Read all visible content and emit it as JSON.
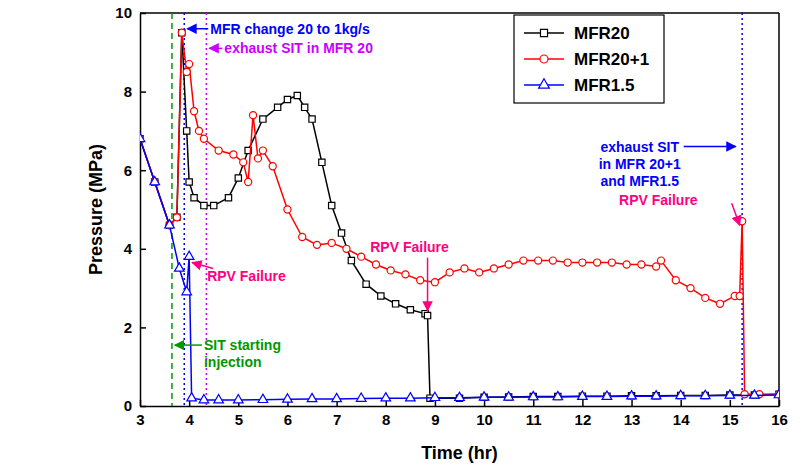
{
  "chart_data": {
    "type": "line",
    "x_label": "Time (hr)",
    "y_label": "Pressure (MPa)",
    "xlim": [
      3,
      16
    ],
    "xticks": [
      3,
      4,
      5,
      6,
      7,
      8,
      9,
      10,
      11,
      12,
      13,
      14,
      15,
      16
    ],
    "ylim": [
      0,
      10
    ],
    "yticks": [
      0,
      2,
      4,
      6,
      8,
      10
    ],
    "grid": false,
    "legend": "upper right",
    "series": [
      {
        "name": "MFR20",
        "color": "#000000",
        "marker": "square",
        "x": [
          3.0,
          3.3,
          3.6,
          3.75,
          3.85,
          3.95,
          4.0,
          4.1,
          4.3,
          4.5,
          4.8,
          5.0,
          5.2,
          5.5,
          5.8,
          6.0,
          6.2,
          6.35,
          6.5,
          6.7,
          6.9,
          7.1,
          7.3,
          7.6,
          7.9,
          8.2,
          8.5,
          8.8,
          8.85,
          8.9,
          9.5,
          10,
          10.5,
          11,
          11.5,
          12,
          12.5,
          13,
          13.5,
          14,
          14.5,
          15,
          15.5,
          16
        ],
        "values": [
          6.8,
          5.7,
          4.6,
          4.8,
          9.5,
          7.0,
          5.7,
          5.3,
          5.1,
          5.1,
          5.3,
          5.8,
          6.5,
          7.3,
          7.6,
          7.8,
          7.9,
          7.6,
          7.3,
          6.2,
          5.1,
          4.4,
          3.7,
          3.1,
          2.8,
          2.6,
          2.45,
          2.35,
          2.3,
          0.2,
          0.2,
          0.22,
          0.23,
          0.24,
          0.24,
          0.25,
          0.25,
          0.26,
          0.26,
          0.27,
          0.27,
          0.28,
          0.28,
          0.3
        ]
      },
      {
        "name": "MFR20+1",
        "color": "#ff0000",
        "marker": "circle",
        "x": [
          3.0,
          3.3,
          3.6,
          3.75,
          3.85,
          3.95,
          4.0,
          4.1,
          4.2,
          4.3,
          4.6,
          4.9,
          5.1,
          5.2,
          5.3,
          5.4,
          5.5,
          5.7,
          6.0,
          6.3,
          6.6,
          6.9,
          7.2,
          7.5,
          7.8,
          8.1,
          8.4,
          8.7,
          9.0,
          9.3,
          9.6,
          9.9,
          10.2,
          10.5,
          10.8,
          11.1,
          11.4,
          11.7,
          12.0,
          12.3,
          12.6,
          12.9,
          13.2,
          13.5,
          13.6,
          13.9,
          14.2,
          14.5,
          14.8,
          15.1,
          15.2,
          15.25,
          15.3,
          15.6,
          16
        ],
        "values": [
          6.8,
          5.7,
          4.6,
          4.8,
          9.5,
          8.5,
          8.7,
          7.5,
          7.0,
          6.8,
          6.5,
          6.4,
          6.2,
          5.7,
          7.4,
          6.3,
          6.5,
          6.1,
          5.0,
          4.3,
          4.1,
          4.15,
          4.0,
          3.8,
          3.6,
          3.45,
          3.35,
          3.2,
          3.15,
          3.4,
          3.5,
          3.4,
          3.5,
          3.6,
          3.7,
          3.7,
          3.7,
          3.65,
          3.65,
          3.65,
          3.65,
          3.6,
          3.6,
          3.55,
          3.7,
          3.2,
          3.0,
          2.75,
          2.6,
          2.8,
          2.8,
          4.7,
          0.3,
          0.3,
          0.3
        ]
      },
      {
        "name": "MFR1.5",
        "color": "#0000ff",
        "marker": "triangle",
        "x": [
          3.0,
          3.3,
          3.6,
          3.8,
          3.95,
          4.0,
          4.05,
          4.3,
          4.6,
          5,
          5.5,
          6,
          6.5,
          7,
          7.5,
          8,
          8.5,
          9,
          9.5,
          10,
          10.5,
          11,
          11.5,
          12,
          12.5,
          13,
          13.5,
          14,
          14.5,
          15,
          15.5,
          16
        ],
        "values": [
          6.8,
          5.7,
          4.6,
          3.5,
          2.9,
          3.8,
          0.2,
          0.15,
          0.15,
          0.15,
          0.16,
          0.17,
          0.18,
          0.18,
          0.19,
          0.2,
          0.2,
          0.21,
          0.21,
          0.22,
          0.22,
          0.23,
          0.23,
          0.24,
          0.24,
          0.25,
          0.25,
          0.26,
          0.26,
          0.27,
          0.27,
          0.28
        ]
      }
    ],
    "vlines": [
      {
        "x": 3.65,
        "color": "#009900",
        "line_style": "dashed"
      },
      {
        "x": 3.9,
        "color": "#0000ff",
        "line_style": "dotted"
      },
      {
        "x": 4.35,
        "color": "#cc00ff",
        "line_style": "dotted"
      },
      {
        "x": 15.25,
        "color": "#0000ff",
        "line_style": "dotted"
      }
    ],
    "annotations": [
      {
        "text": [
          "MFR change 20 to 1kg/s"
        ],
        "x": 3.9,
        "y": 9.6,
        "color": "#0000ff"
      },
      {
        "text": [
          "exhaust SIT in MFR 20"
        ],
        "x": 4.35,
        "y": 9.1,
        "color": "#cc00ff"
      },
      {
        "text": [
          "SIT starting",
          "injection"
        ],
        "x": 3.65,
        "y": 1.55,
        "color": "#009900"
      },
      {
        "text": [
          "RPV Failure"
        ],
        "x": 4.0,
        "y": 3.7,
        "color": "#ff0080"
      },
      {
        "text": [
          "RPV Failure"
        ],
        "x": 8.85,
        "y": 2.35,
        "color": "#ff0080"
      },
      {
        "text": [
          "RPV Failure"
        ],
        "x": 15.2,
        "y": 4.5,
        "color": "#ff0080"
      },
      {
        "text": [
          "exhaust SIT",
          "in MFR 20+1",
          "and MFR1.5"
        ],
        "x": 15.2,
        "y": 6.6,
        "color": "#0000ff"
      }
    ]
  }
}
